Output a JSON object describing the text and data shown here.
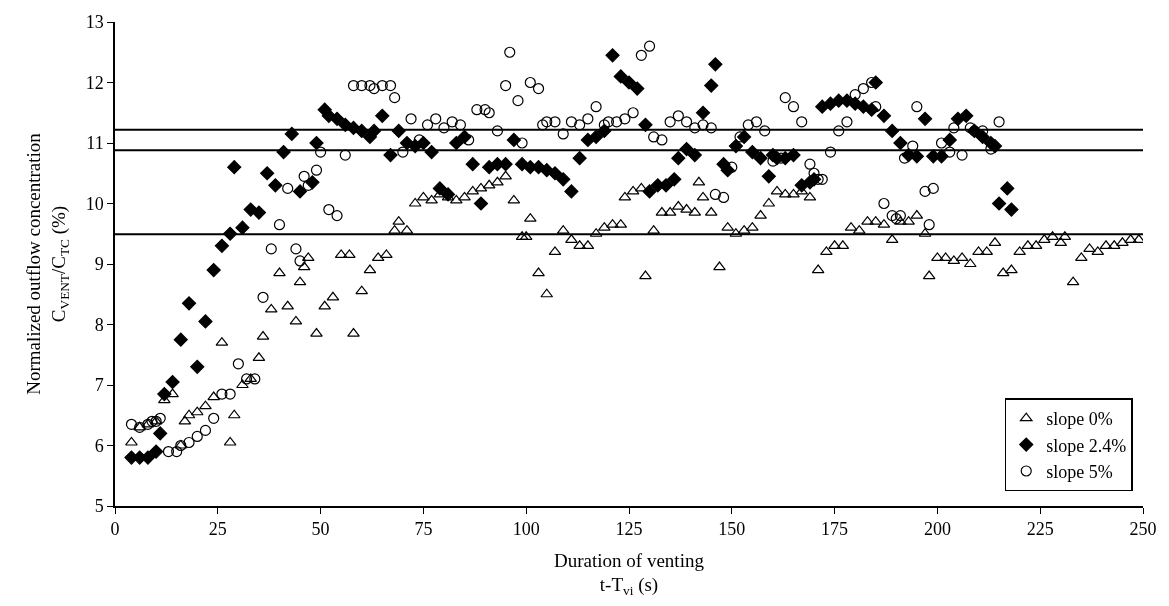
{
  "chart_data": {
    "type": "scatter",
    "xlabel": "Duration of venting\nt-T$_{vi}$ (s)",
    "ylabel": "Normalized outflow concentration\nC$_{VENT}$/C$_{TC}$ (%)",
    "xlim": [
      0,
      250
    ],
    "xticks": [
      0,
      25,
      50,
      75,
      100,
      125,
      150,
      175,
      200,
      225,
      250
    ],
    "ylim": [
      5,
      13
    ],
    "yticks": [
      5,
      6,
      7,
      8,
      9,
      10,
      11,
      12,
      13
    ],
    "grid": false,
    "legend": "bottom right",
    "ref_lines": [
      {
        "axis": "y",
        "value": 11.22,
        "color": "#000000"
      },
      {
        "axis": "y",
        "value": 10.88,
        "color": "#000000"
      },
      {
        "axis": "y",
        "value": 9.49,
        "color": "#000000"
      }
    ],
    "series": [
      {
        "name": "slope 0%",
        "color": "#000000",
        "marker": "triangle",
        "x": [
          4,
          6,
          8,
          10,
          12,
          14,
          16,
          17,
          18,
          20,
          22,
          24,
          26,
          28,
          29,
          31,
          33,
          35,
          36,
          38,
          40,
          42,
          44,
          45,
          46,
          47,
          49,
          51,
          53,
          55,
          57,
          58,
          60,
          62,
          64,
          66,
          68,
          69,
          71,
          73,
          75,
          77,
          79,
          81,
          83,
          85,
          87,
          89,
          91,
          93,
          95,
          97,
          99,
          100,
          101,
          103,
          105,
          107,
          109,
          111,
          113,
          115,
          117,
          119,
          121,
          123,
          124,
          126,
          128,
          129,
          131,
          133,
          135,
          137,
          139,
          141,
          142,
          143,
          145,
          147,
          149,
          151,
          153,
          155,
          157,
          159,
          161,
          163,
          165,
          167,
          169,
          171,
          173,
          175,
          177,
          179,
          181,
          183,
          185,
          187,
          189,
          191,
          193,
          195,
          197,
          198,
          200,
          202,
          204,
          206,
          208,
          210,
          212,
          214,
          216,
          218,
          220,
          222,
          224,
          226,
          228,
          230,
          231,
          233,
          235,
          237,
          239,
          241,
          243,
          245,
          247,
          249
        ],
        "values": [
          6.05,
          6.3,
          6.35,
          6.4,
          6.75,
          6.85,
          6.0,
          6.4,
          6.5,
          6.55,
          6.65,
          6.8,
          7.7,
          6.05,
          6.5,
          7.0,
          7.1,
          7.45,
          7.8,
          8.25,
          8.85,
          8.3,
          8.05,
          8.7,
          8.95,
          9.1,
          7.85,
          8.3,
          8.45,
          9.15,
          9.15,
          7.85,
          8.55,
          8.9,
          9.1,
          9.15,
          9.55,
          9.7,
          9.55,
          10.0,
          10.1,
          10.05,
          10.15,
          10.1,
          10.05,
          10.1,
          10.2,
          10.25,
          10.3,
          10.35,
          10.45,
          10.05,
          9.45,
          9.45,
          9.75,
          8.85,
          8.5,
          9.2,
          9.55,
          9.4,
          9.3,
          9.3,
          9.5,
          9.6,
          9.65,
          9.65,
          10.1,
          10.2,
          10.25,
          8.8,
          9.55,
          9.85,
          9.85,
          9.95,
          9.9,
          9.85,
          10.35,
          10.1,
          9.85,
          8.95,
          9.6,
          9.5,
          9.55,
          9.6,
          9.8,
          10.0,
          10.2,
          10.15,
          10.15,
          10.2,
          10.1,
          8.9,
          9.2,
          9.3,
          9.3,
          9.6,
          9.55,
          9.7,
          9.7,
          9.65,
          9.4,
          9.7,
          9.7,
          9.8,
          9.5,
          8.8,
          9.1,
          9.1,
          9.05,
          9.1,
          9.0,
          9.2,
          9.2,
          9.35,
          8.85,
          8.9,
          9.2,
          9.3,
          9.3,
          9.4,
          9.45,
          9.35,
          9.45,
          8.7,
          9.1,
          9.25,
          9.2,
          9.3,
          9.3,
          9.35,
          9.4,
          9.4
        ]
      },
      {
        "name": "slope 2.4%",
        "color": "#000000",
        "marker": "diamond",
        "x": [
          4,
          6,
          8,
          10,
          11,
          12,
          14,
          16,
          18,
          20,
          22,
          24,
          26,
          28,
          29,
          31,
          33,
          35,
          37,
          39,
          41,
          43,
          45,
          48,
          49,
          51,
          52,
          54,
          56,
          58,
          60,
          62,
          63,
          65,
          67,
          69,
          71,
          73,
          75,
          77,
          79,
          81,
          83,
          85,
          87,
          89,
          91,
          93,
          95,
          97,
          99,
          101,
          103,
          105,
          107,
          109,
          111,
          113,
          115,
          117,
          119,
          121,
          123,
          125,
          127,
          129,
          130,
          132,
          134,
          136,
          137,
          139,
          141,
          143,
          145,
          146,
          148,
          149,
          151,
          153,
          155,
          157,
          159,
          160,
          161,
          163,
          165,
          167,
          169,
          170,
          172,
          174,
          176,
          178,
          180,
          182,
          184,
          185,
          187,
          189,
          191,
          193,
          195,
          197,
          199,
          201,
          203,
          205,
          207,
          209,
          211,
          213,
          214,
          215,
          217,
          218
        ],
        "values": [
          5.8,
          5.8,
          5.8,
          5.9,
          6.2,
          6.85,
          7.05,
          7.75,
          8.35,
          7.3,
          8.05,
          8.9,
          9.3,
          9.5,
          10.6,
          9.6,
          9.9,
          9.85,
          10.5,
          10.3,
          10.85,
          11.15,
          10.2,
          10.35,
          11.0,
          11.55,
          11.45,
          11.4,
          11.3,
          11.25,
          11.2,
          11.1,
          11.2,
          11.45,
          10.8,
          11.2,
          11.0,
          10.95,
          11.0,
          10.85,
          10.25,
          10.15,
          11.0,
          11.1,
          10.65,
          10.0,
          10.6,
          10.65,
          10.65,
          11.05,
          10.65,
          10.6,
          10.6,
          10.55,
          10.5,
          10.4,
          10.2,
          10.75,
          11.05,
          11.1,
          11.2,
          12.45,
          12.1,
          12.0,
          11.9,
          11.3,
          10.2,
          10.3,
          10.3,
          10.4,
          10.75,
          10.9,
          10.8,
          11.5,
          11.95,
          12.3,
          10.65,
          10.55,
          10.95,
          11.1,
          10.85,
          10.75,
          10.45,
          10.8,
          10.75,
          10.75,
          10.8,
          10.3,
          10.35,
          10.4,
          11.6,
          11.65,
          11.7,
          11.7,
          11.65,
          11.6,
          11.55,
          12.0,
          11.45,
          11.2,
          11.0,
          10.8,
          10.78,
          11.4,
          10.78,
          10.78,
          11.05,
          11.4,
          11.45,
          11.2,
          11.1,
          11.0,
          10.95,
          10.0,
          10.25,
          9.9
        ]
      },
      {
        "name": "slope 5%",
        "color": "#000000",
        "marker": "circle",
        "x": [
          4,
          6,
          8,
          9,
          10,
          11,
          13,
          15,
          16,
          18,
          20,
          22,
          24,
          26,
          28,
          30,
          32,
          34,
          36,
          38,
          40,
          42,
          44,
          45,
          46,
          47,
          49,
          50,
          52,
          54,
          56,
          58,
          60,
          62,
          63,
          65,
          67,
          68,
          70,
          72,
          74,
          76,
          78,
          80,
          82,
          84,
          86,
          88,
          90,
          91,
          93,
          95,
          96,
          98,
          99,
          101,
          103,
          104,
          105,
          107,
          109,
          111,
          113,
          115,
          117,
          119,
          120,
          122,
          124,
          126,
          128,
          130,
          131,
          133,
          135,
          137,
          139,
          141,
          143,
          145,
          146,
          148,
          150,
          152,
          154,
          156,
          158,
          160,
          162,
          163,
          165,
          167,
          169,
          170,
          171,
          172,
          174,
          176,
          178,
          180,
          182,
          184,
          185,
          187,
          189,
          190,
          191,
          192,
          194,
          195,
          197,
          198,
          199,
          201,
          203,
          204,
          206,
          208,
          209,
          211,
          213,
          215
        ],
        "values": [
          6.35,
          6.3,
          6.35,
          6.4,
          6.4,
          6.45,
          5.9,
          5.9,
          6.0,
          6.05,
          6.15,
          6.25,
          6.45,
          6.85,
          6.85,
          7.35,
          7.1,
          7.1,
          8.45,
          9.25,
          9.65,
          10.25,
          9.25,
          9.05,
          10.45,
          10.3,
          10.55,
          10.85,
          9.9,
          9.8,
          10.8,
          11.95,
          11.95,
          11.95,
          11.9,
          11.95,
          11.95,
          11.75,
          10.85,
          11.4,
          11.05,
          11.3,
          11.4,
          11.25,
          11.35,
          11.3,
          11.05,
          11.55,
          11.55,
          11.5,
          11.2,
          11.95,
          12.5,
          11.7,
          11.0,
          12.0,
          11.9,
          11.3,
          11.35,
          11.35,
          11.15,
          11.35,
          11.3,
          11.4,
          11.6,
          11.3,
          11.35,
          11.35,
          11.4,
          11.5,
          12.45,
          12.6,
          11.1,
          11.05,
          11.35,
          11.45,
          11.35,
          11.25,
          11.3,
          11.25,
          10.15,
          10.1,
          10.6,
          11.1,
          11.3,
          11.35,
          11.2,
          10.7,
          10.75,
          11.75,
          11.6,
          11.35,
          10.65,
          10.5,
          10.4,
          10.4,
          10.85,
          11.2,
          11.35,
          11.8,
          11.9,
          12.0,
          11.6,
          10.0,
          9.8,
          9.75,
          9.8,
          10.75,
          10.95,
          11.6,
          10.2,
          9.65,
          10.25,
          11.0,
          10.85,
          11.25,
          10.8,
          11.25,
          11.2,
          11.2,
          10.9,
          11.35
        ]
      }
    ]
  }
}
